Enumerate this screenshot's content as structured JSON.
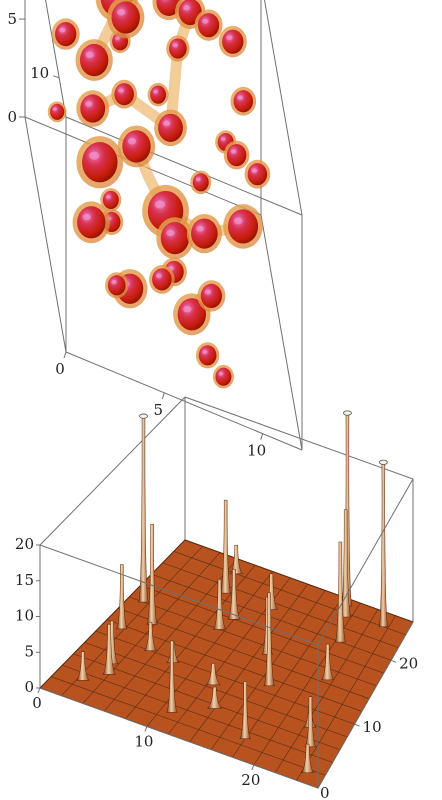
{
  "chart_data": [
    {
      "type": "scatter",
      "kind": "3d-isosurface",
      "axes": {
        "x_ticks": [
          "0",
          "5",
          "10"
        ],
        "y_ticks": [
          "0",
          "5",
          "10"
        ],
        "z_ticks": [
          "0",
          "5",
          "10"
        ],
        "x_range": [
          0,
          12
        ],
        "y_range": [
          0,
          12
        ],
        "z_range": [
          0,
          12
        ]
      },
      "colors": {
        "blob_core": "#c81e0a",
        "blob_highlight": "#e06aa8",
        "blob_shell": "#e8a24a",
        "box": "#707070"
      },
      "blobs": [
        {
          "x": 1.0,
          "y": 8.0,
          "z": 11.0,
          "r": 0.45
        },
        {
          "x": 1.8,
          "y": 10.5,
          "z": 11.0,
          "r": 0.55
        },
        {
          "x": 1.6,
          "y": 7.6,
          "z": 9.3,
          "r": 0.6
        },
        {
          "x": 3.1,
          "y": 6.6,
          "z": 9.6,
          "r": 0.8
        },
        {
          "x": 4.4,
          "y": 8.2,
          "z": 9.5,
          "r": 0.45
        },
        {
          "x": 2.8,
          "y": 5.3,
          "z": 8.3,
          "r": 0.7
        },
        {
          "x": 4.4,
          "y": 9.4,
          "z": 10.5,
          "r": 0.9
        },
        {
          "x": 4.6,
          "y": 10.0,
          "z": 9.0,
          "r": 0.8
        },
        {
          "x": 7.0,
          "y": 10.6,
          "z": 10.2,
          "r": 0.7
        },
        {
          "x": 8.0,
          "y": 11.0,
          "z": 9.7,
          "r": 0.65
        },
        {
          "x": 8.9,
          "y": 10.9,
          "z": 9.5,
          "r": 0.6
        },
        {
          "x": 7.2,
          "y": 9.8,
          "z": 8.7,
          "r": 0.5
        },
        {
          "x": 10.2,
          "y": 10.2,
          "z": 9.9,
          "r": 0.6
        },
        {
          "x": 4.4,
          "y": 6.7,
          "z": 8.3,
          "r": 0.55
        },
        {
          "x": 2.9,
          "y": 4.1,
          "z": 6.8,
          "r": 1.0
        },
        {
          "x": 4.8,
          "y": 5.5,
          "z": 7.0,
          "r": 0.8
        },
        {
          "x": 6.6,
          "y": 6.8,
          "z": 7.4,
          "r": 0.7
        },
        {
          "x": 10.3,
          "y": 9.7,
          "z": 7.4,
          "r": 0.55
        },
        {
          "x": 9.3,
          "y": 7.8,
          "z": 6.8,
          "r": 0.45
        },
        {
          "x": 9.7,
          "y": 8.2,
          "z": 5.9,
          "r": 0.55
        },
        {
          "x": 10.6,
          "y": 8.5,
          "z": 5.0,
          "r": 0.55
        },
        {
          "x": 6.0,
          "y": 4.3,
          "z": 5.4,
          "r": 1.0
        },
        {
          "x": 6.2,
          "y": 4.6,
          "z": 3.8,
          "r": 0.8
        },
        {
          "x": 7.8,
          "y": 4.9,
          "z": 4.4,
          "r": 0.75
        },
        {
          "x": 9.8,
          "y": 5.9,
          "z": 4.6,
          "r": 0.85
        },
        {
          "x": 3.2,
          "y": 3.8,
          "z": 5.3,
          "r": 0.45
        },
        {
          "x": 2.1,
          "y": 2.8,
          "z": 4.7,
          "r": 0.8
        },
        {
          "x": 3.1,
          "y": 1.7,
          "z": 3.0,
          "r": 0.5
        },
        {
          "x": 4.0,
          "y": 0.6,
          "z": 4.3,
          "r": 0.75
        },
        {
          "x": 5.5,
          "y": 2.4,
          "z": 3.6,
          "r": 0.55
        },
        {
          "x": 6.9,
          "y": 1.9,
          "z": 2.9,
          "r": 0.8
        },
        {
          "x": 8.0,
          "y": 2.7,
          "z": 3.5,
          "r": 0.6
        },
        {
          "x": 7.6,
          "y": 0.7,
          "z": 2.3,
          "r": 0.5
        },
        {
          "x": 8.3,
          "y": 0.5,
          "z": 1.7,
          "r": 0.45
        },
        {
          "x": 6.5,
          "y": 1.0,
          "z": 5.8,
          "r": 0.55
        },
        {
          "x": 8.0,
          "y": 5.4,
          "z": 6.6,
          "r": 0.45
        },
        {
          "x": 5.9,
          "y": 8.6,
          "z": 7.0,
          "r": 0.45
        },
        {
          "x": 3.5,
          "y": 1.3,
          "z": 6.8,
          "r": 0.5
        },
        {
          "x": 0.8,
          "y": 5.4,
          "z": 7.2,
          "r": 0.4
        }
      ],
      "filaments": [
        [
          [
            2.8,
            5.3,
            8.3
          ],
          [
            4.4,
            6.7,
            8.3
          ],
          [
            6.6,
            6.8,
            7.4
          ]
        ],
        [
          [
            4.8,
            5.5,
            7.0
          ],
          [
            5.2,
            5.2,
            6.0
          ],
          [
            6.0,
            4.3,
            5.4
          ]
        ],
        [
          [
            6.6,
            6.8,
            7.4
          ],
          [
            7.2,
            9.8,
            8.7
          ],
          [
            8.0,
            11.0,
            9.7
          ]
        ],
        [
          [
            4.6,
            10.0,
            9.0
          ],
          [
            4.0,
            8.6,
            9.8
          ],
          [
            3.1,
            6.6,
            9.6
          ]
        ],
        [
          [
            6.0,
            4.3,
            5.4
          ],
          [
            7.8,
            4.9,
            4.4
          ],
          [
            9.8,
            5.9,
            4.6
          ]
        ],
        [
          [
            6.9,
            1.9,
            2.9
          ],
          [
            7.4,
            2.4,
            3.4
          ],
          [
            8.0,
            2.7,
            3.5
          ]
        ]
      ]
    },
    {
      "type": "area",
      "kind": "3d-surface",
      "axes": {
        "x_ticks": [
          "0",
          "10",
          "20"
        ],
        "y_ticks": [
          "10",
          "20"
        ],
        "z_ticks": [
          "0",
          "5",
          "10",
          "15",
          "20"
        ],
        "x_range": [
          0,
          26
        ],
        "y_range": [
          0,
          26
        ],
        "z_range": [
          0,
          20
        ]
      },
      "colors": {
        "surface": "#b8521e",
        "surface_dark": "#7a2c0c",
        "peak_light": "#f2d2a6",
        "grid": "#4a2a14",
        "box": "#707070"
      },
      "peaks": [
        {
          "x": 1.5,
          "y": 16.0,
          "h": 26,
          "w": 0.55
        },
        {
          "x": 3.8,
          "y": 13.5,
          "h": 14,
          "w": 0.6
        },
        {
          "x": 1.8,
          "y": 11.5,
          "h": 9,
          "w": 0.6
        },
        {
          "x": 3.5,
          "y": 6.5,
          "h": 6,
          "w": 0.7
        },
        {
          "x": 4.0,
          "y": 5.0,
          "h": 7,
          "w": 0.7
        },
        {
          "x": 2.5,
          "y": 3.0,
          "h": 4,
          "w": 0.7
        },
        {
          "x": 5.5,
          "y": 10.0,
          "h": 4,
          "w": 0.7
        },
        {
          "x": 8.0,
          "y": 9.5,
          "h": 3,
          "w": 0.7
        },
        {
          "x": 7.5,
          "y": 21.0,
          "h": 13,
          "w": 0.6
        },
        {
          "x": 7.0,
          "y": 24.0,
          "h": 4,
          "w": 0.7
        },
        {
          "x": 9.5,
          "y": 16.0,
          "h": 7,
          "w": 0.7
        },
        {
          "x": 10.0,
          "y": 18.0,
          "h": 7,
          "w": 0.7
        },
        {
          "x": 11.0,
          "y": 3.0,
          "h": 10,
          "w": 0.6
        },
        {
          "x": 12.5,
          "y": 21.0,
          "h": 5,
          "w": 0.7
        },
        {
          "x": 12.5,
          "y": 8.5,
          "h": 3,
          "w": 0.8
        },
        {
          "x": 15.0,
          "y": 15.0,
          "h": 8,
          "w": 0.6
        },
        {
          "x": 17.0,
          "y": 11.0,
          "h": 13,
          "w": 0.6
        },
        {
          "x": 18.0,
          "y": 3.0,
          "h": 8,
          "w": 0.6
        },
        {
          "x": 19.0,
          "y": 25.0,
          "h": 27,
          "w": 0.5
        },
        {
          "x": 19.5,
          "y": 23.5,
          "h": 15,
          "w": 0.6
        },
        {
          "x": 20.5,
          "y": 20.0,
          "h": 14,
          "w": 0.6
        },
        {
          "x": 21.5,
          "y": 14.5,
          "h": 5,
          "w": 0.7
        },
        {
          "x": 22.5,
          "y": 7.5,
          "h": 3,
          "w": 0.7
        },
        {
          "x": 23.5,
          "y": 5.0,
          "h": 7,
          "w": 0.6
        },
        {
          "x": 23.5,
          "y": 24.0,
          "h": 23,
          "w": 0.5
        },
        {
          "x": 24.5,
          "y": 1.5,
          "h": 4,
          "w": 0.7
        },
        {
          "x": 14.0,
          "y": 5.5,
          "h": 3,
          "w": 0.8
        }
      ]
    }
  ]
}
